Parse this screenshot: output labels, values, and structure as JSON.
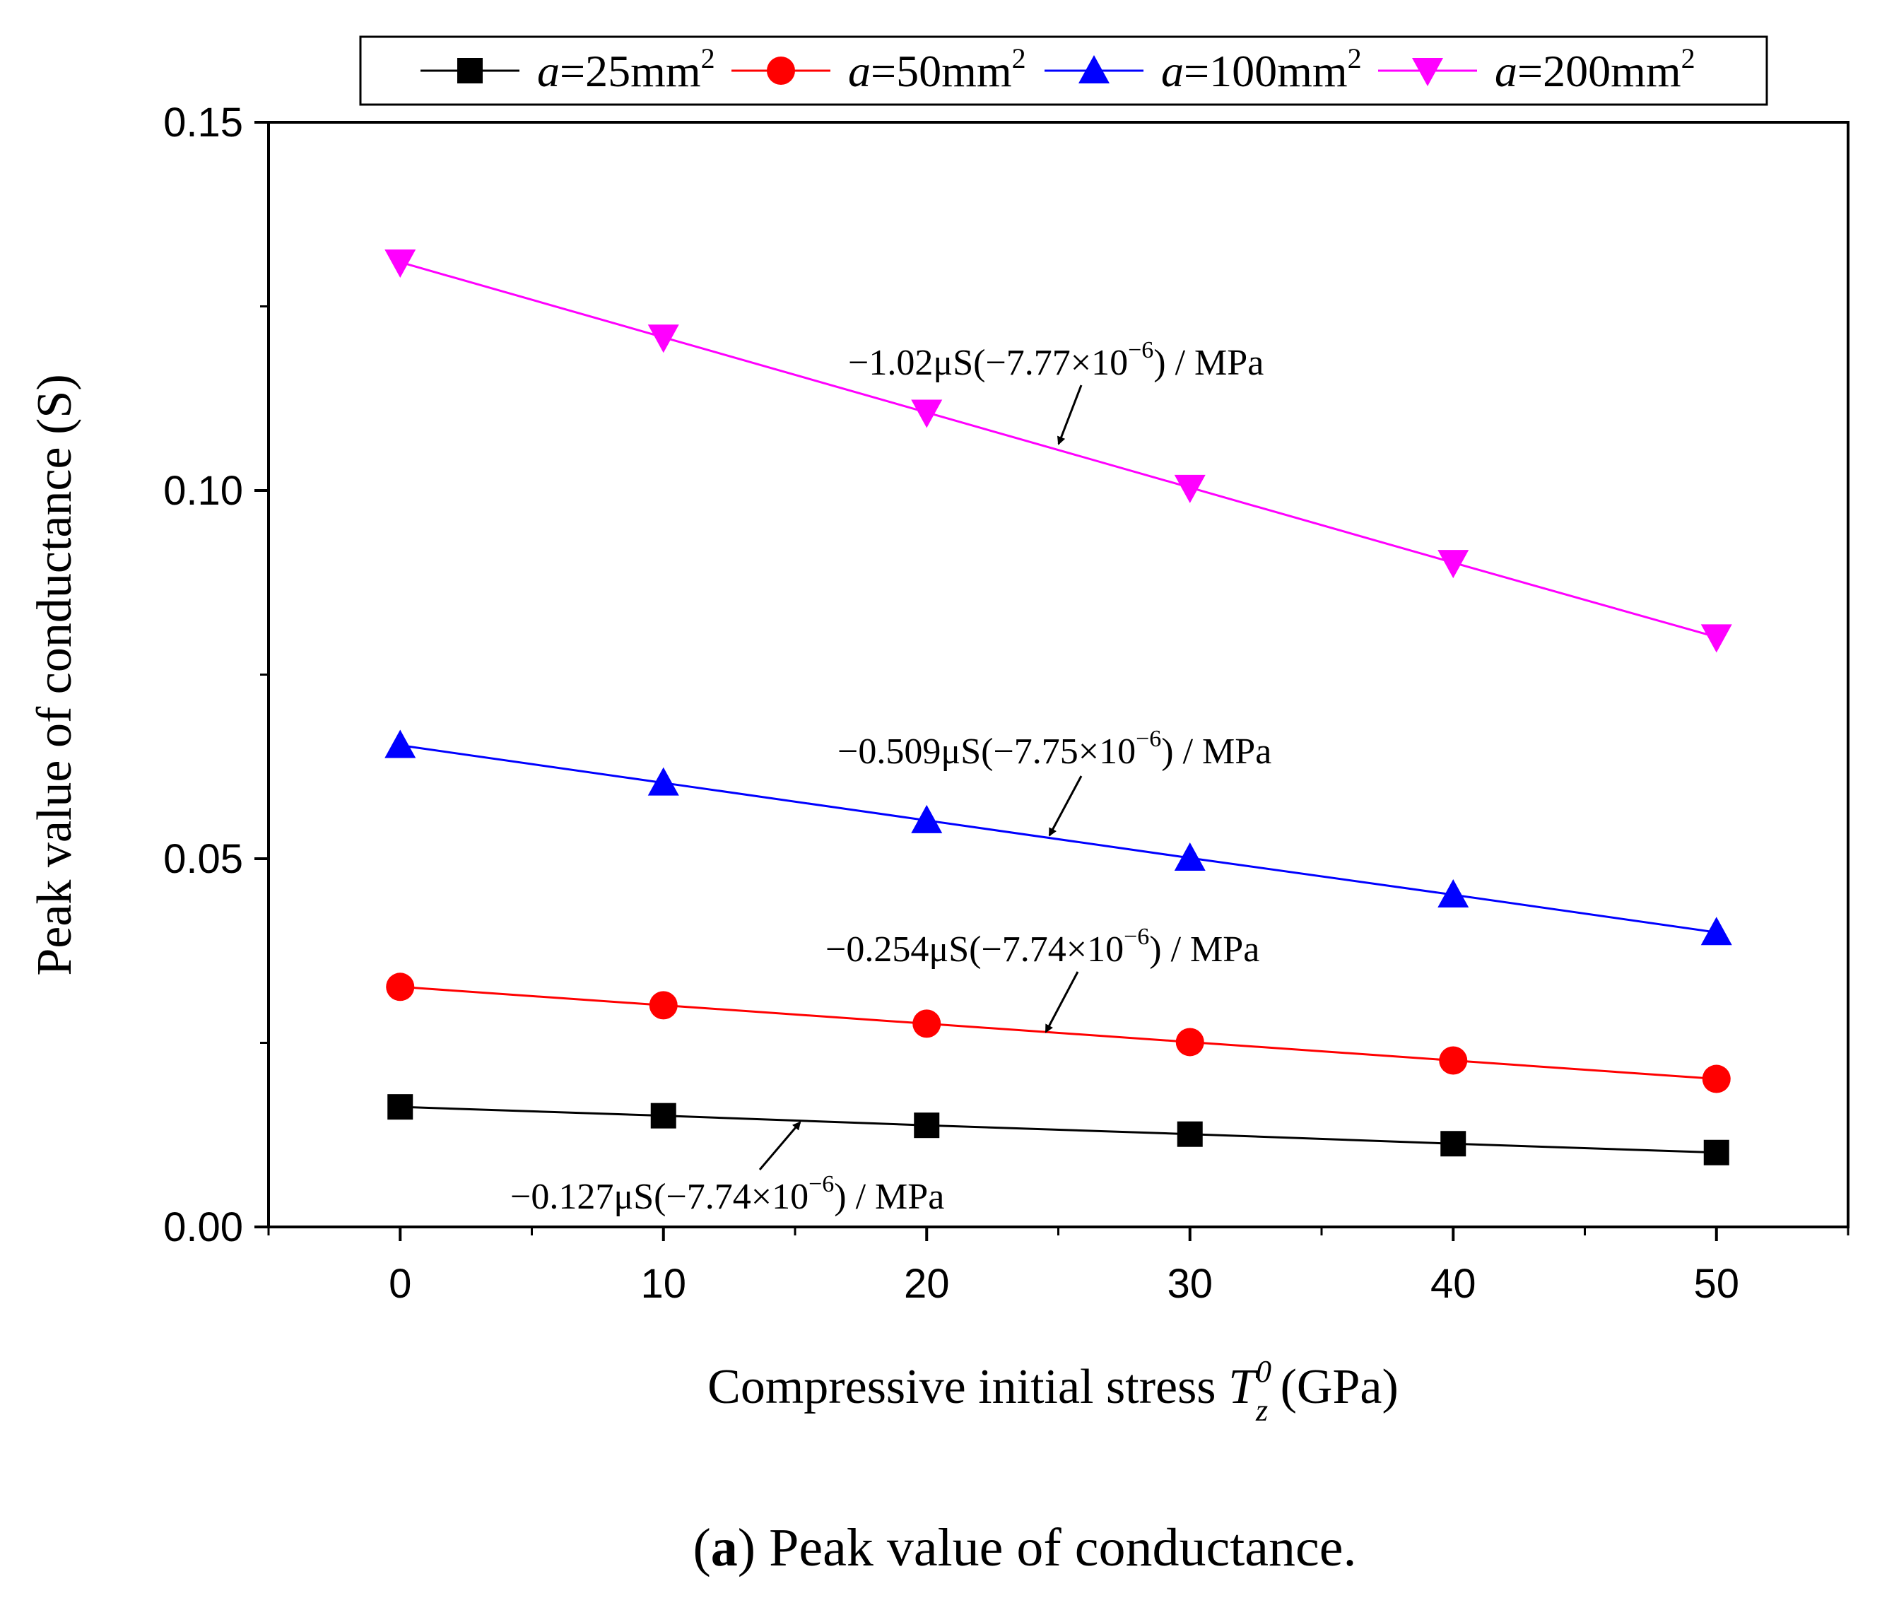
{
  "chart_data": {
    "type": "line",
    "title": "",
    "caption_label": "a",
    "caption_rest": ") Peak value of conductance.",
    "caption_open": "(",
    "xlabel_prefix": "Compressive initial stress ",
    "xlabel_symbol": "T",
    "xlabel_sup": "0",
    "xlabel_sub": "z",
    "xlabel_suffix": " (GPa)",
    "ylabel": "Peak value of conductance (S)",
    "xlim": [
      -5,
      55
    ],
    "ylim": [
      0.0,
      0.15
    ],
    "xticks": [
      0,
      10,
      20,
      30,
      40,
      50
    ],
    "xtick_labels": [
      "0",
      "10",
      "20",
      "30",
      "40",
      "50"
    ],
    "yticks": [
      0.0,
      0.05,
      0.1,
      0.15
    ],
    "ytick_labels": [
      "0.00",
      "0.05",
      "0.10",
      "0.15"
    ],
    "grid": false,
    "legend_position": "top",
    "x": [
      0,
      10,
      20,
      30,
      40,
      50
    ],
    "series": [
      {
        "name": "a=25mm2",
        "var": "a",
        "text": "=25mm",
        "sup": "2",
        "color": "#000000",
        "marker": "square",
        "values": [
          0.0163,
          0.0151,
          0.0138,
          0.0126,
          0.0113,
          0.0101
        ]
      },
      {
        "name": "a=50mm2",
        "var": "a",
        "text": "=50mm",
        "sup": "2",
        "color": "#ff0000",
        "marker": "circle",
        "values": [
          0.0326,
          0.0301,
          0.0276,
          0.0251,
          0.0226,
          0.0201
        ]
      },
      {
        "name": "a=100mm2",
        "var": "a",
        "text": "=100mm",
        "sup": "2",
        "color": "#0000ff",
        "marker": "triangle-up",
        "values": [
          0.0654,
          0.0603,
          0.0552,
          0.0501,
          0.0451,
          0.04
        ]
      },
      {
        "name": "a=200mm2",
        "var": "a",
        "text": "=200mm",
        "sup": "2",
        "color": "#ff00ff",
        "marker": "triangle-down",
        "values": [
          0.131,
          0.1208,
          0.1106,
          0.1004,
          0.0902,
          0.0801
        ]
      }
    ],
    "annotations": [
      {
        "main": "−1.02μS(−7.77×10",
        "sup": "−6",
        "tail": ") / MPa",
        "series": 3
      },
      {
        "main": "−0.509μS(−7.75×10",
        "sup": "−6",
        "tail": ") / MPa",
        "series": 2
      },
      {
        "main": "−0.254μS(−7.74×10",
        "sup": "−6",
        "tail": ") / MPa",
        "series": 1
      },
      {
        "main": "−0.127μS(−7.74×10",
        "sup": "−6",
        "tail": ") / MPa",
        "series": 0
      }
    ]
  }
}
